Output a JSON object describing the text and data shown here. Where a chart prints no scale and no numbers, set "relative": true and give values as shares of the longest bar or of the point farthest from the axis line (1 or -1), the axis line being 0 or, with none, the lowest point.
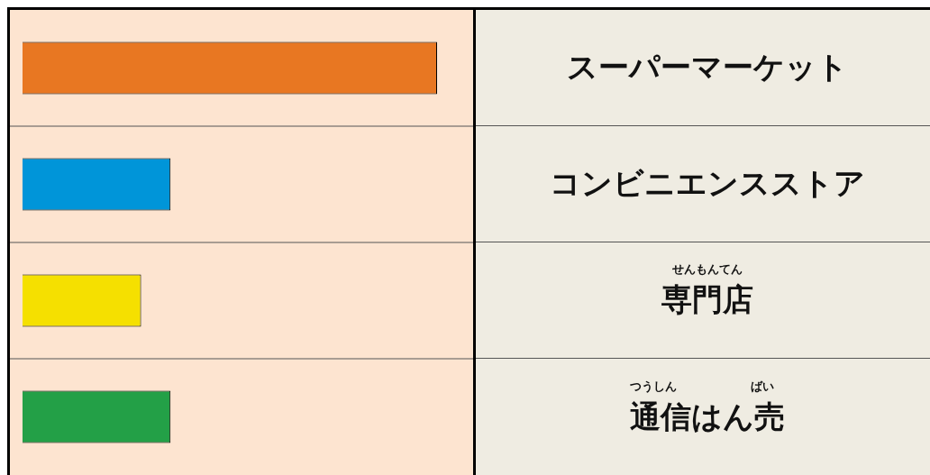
{
  "chart_data": {
    "type": "bar",
    "orientation": "horizontal",
    "relative": true,
    "categories": [
      "スーパーマーケット",
      "コンビニエンスストア",
      "専門店",
      "通信はん売"
    ],
    "values": [
      1,
      0.357,
      0.286,
      0.357
    ],
    "colors": [
      "#e87722",
      "#0095d9",
      "#f5e000",
      "#23a047"
    ],
    "grid": "y",
    "annotations": [
      "せんもんてん",
      "つうしん",
      "ばい"
    ]
  }
}
